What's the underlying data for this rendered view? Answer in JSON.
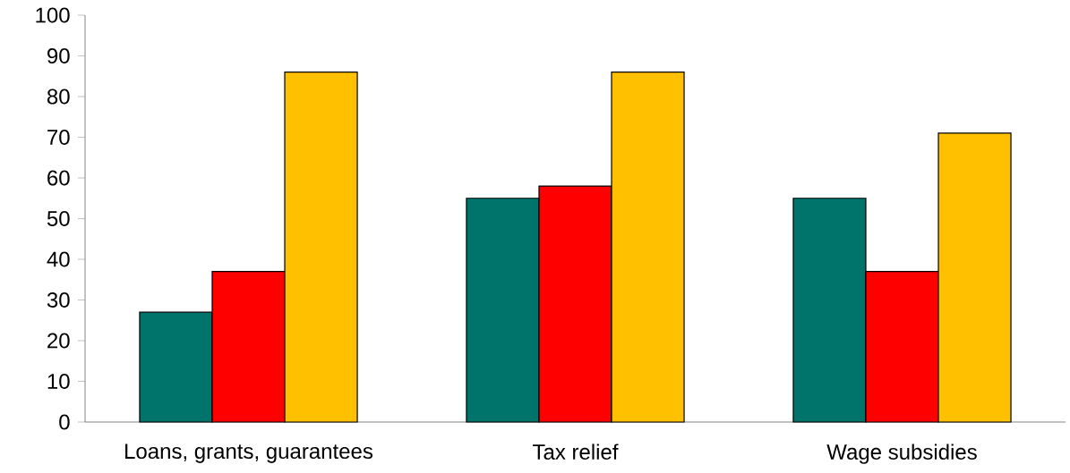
{
  "chart_data": {
    "type": "bar",
    "categories": [
      "Loans, grants, guarantees",
      "Tax relief",
      "Wage subsidies"
    ],
    "series": [
      {
        "color": "#00746b",
        "values": [
          27,
          55,
          55
        ]
      },
      {
        "color": "#ff0000",
        "values": [
          37,
          58,
          37
        ]
      },
      {
        "color": "#ffc000",
        "values": [
          86,
          86,
          71
        ]
      }
    ],
    "ylim": [
      0,
      100
    ],
    "yticks": [
      0,
      10,
      20,
      30,
      40,
      50,
      60,
      70,
      80,
      90,
      100
    ],
    "grid": false,
    "legend": false
  }
}
